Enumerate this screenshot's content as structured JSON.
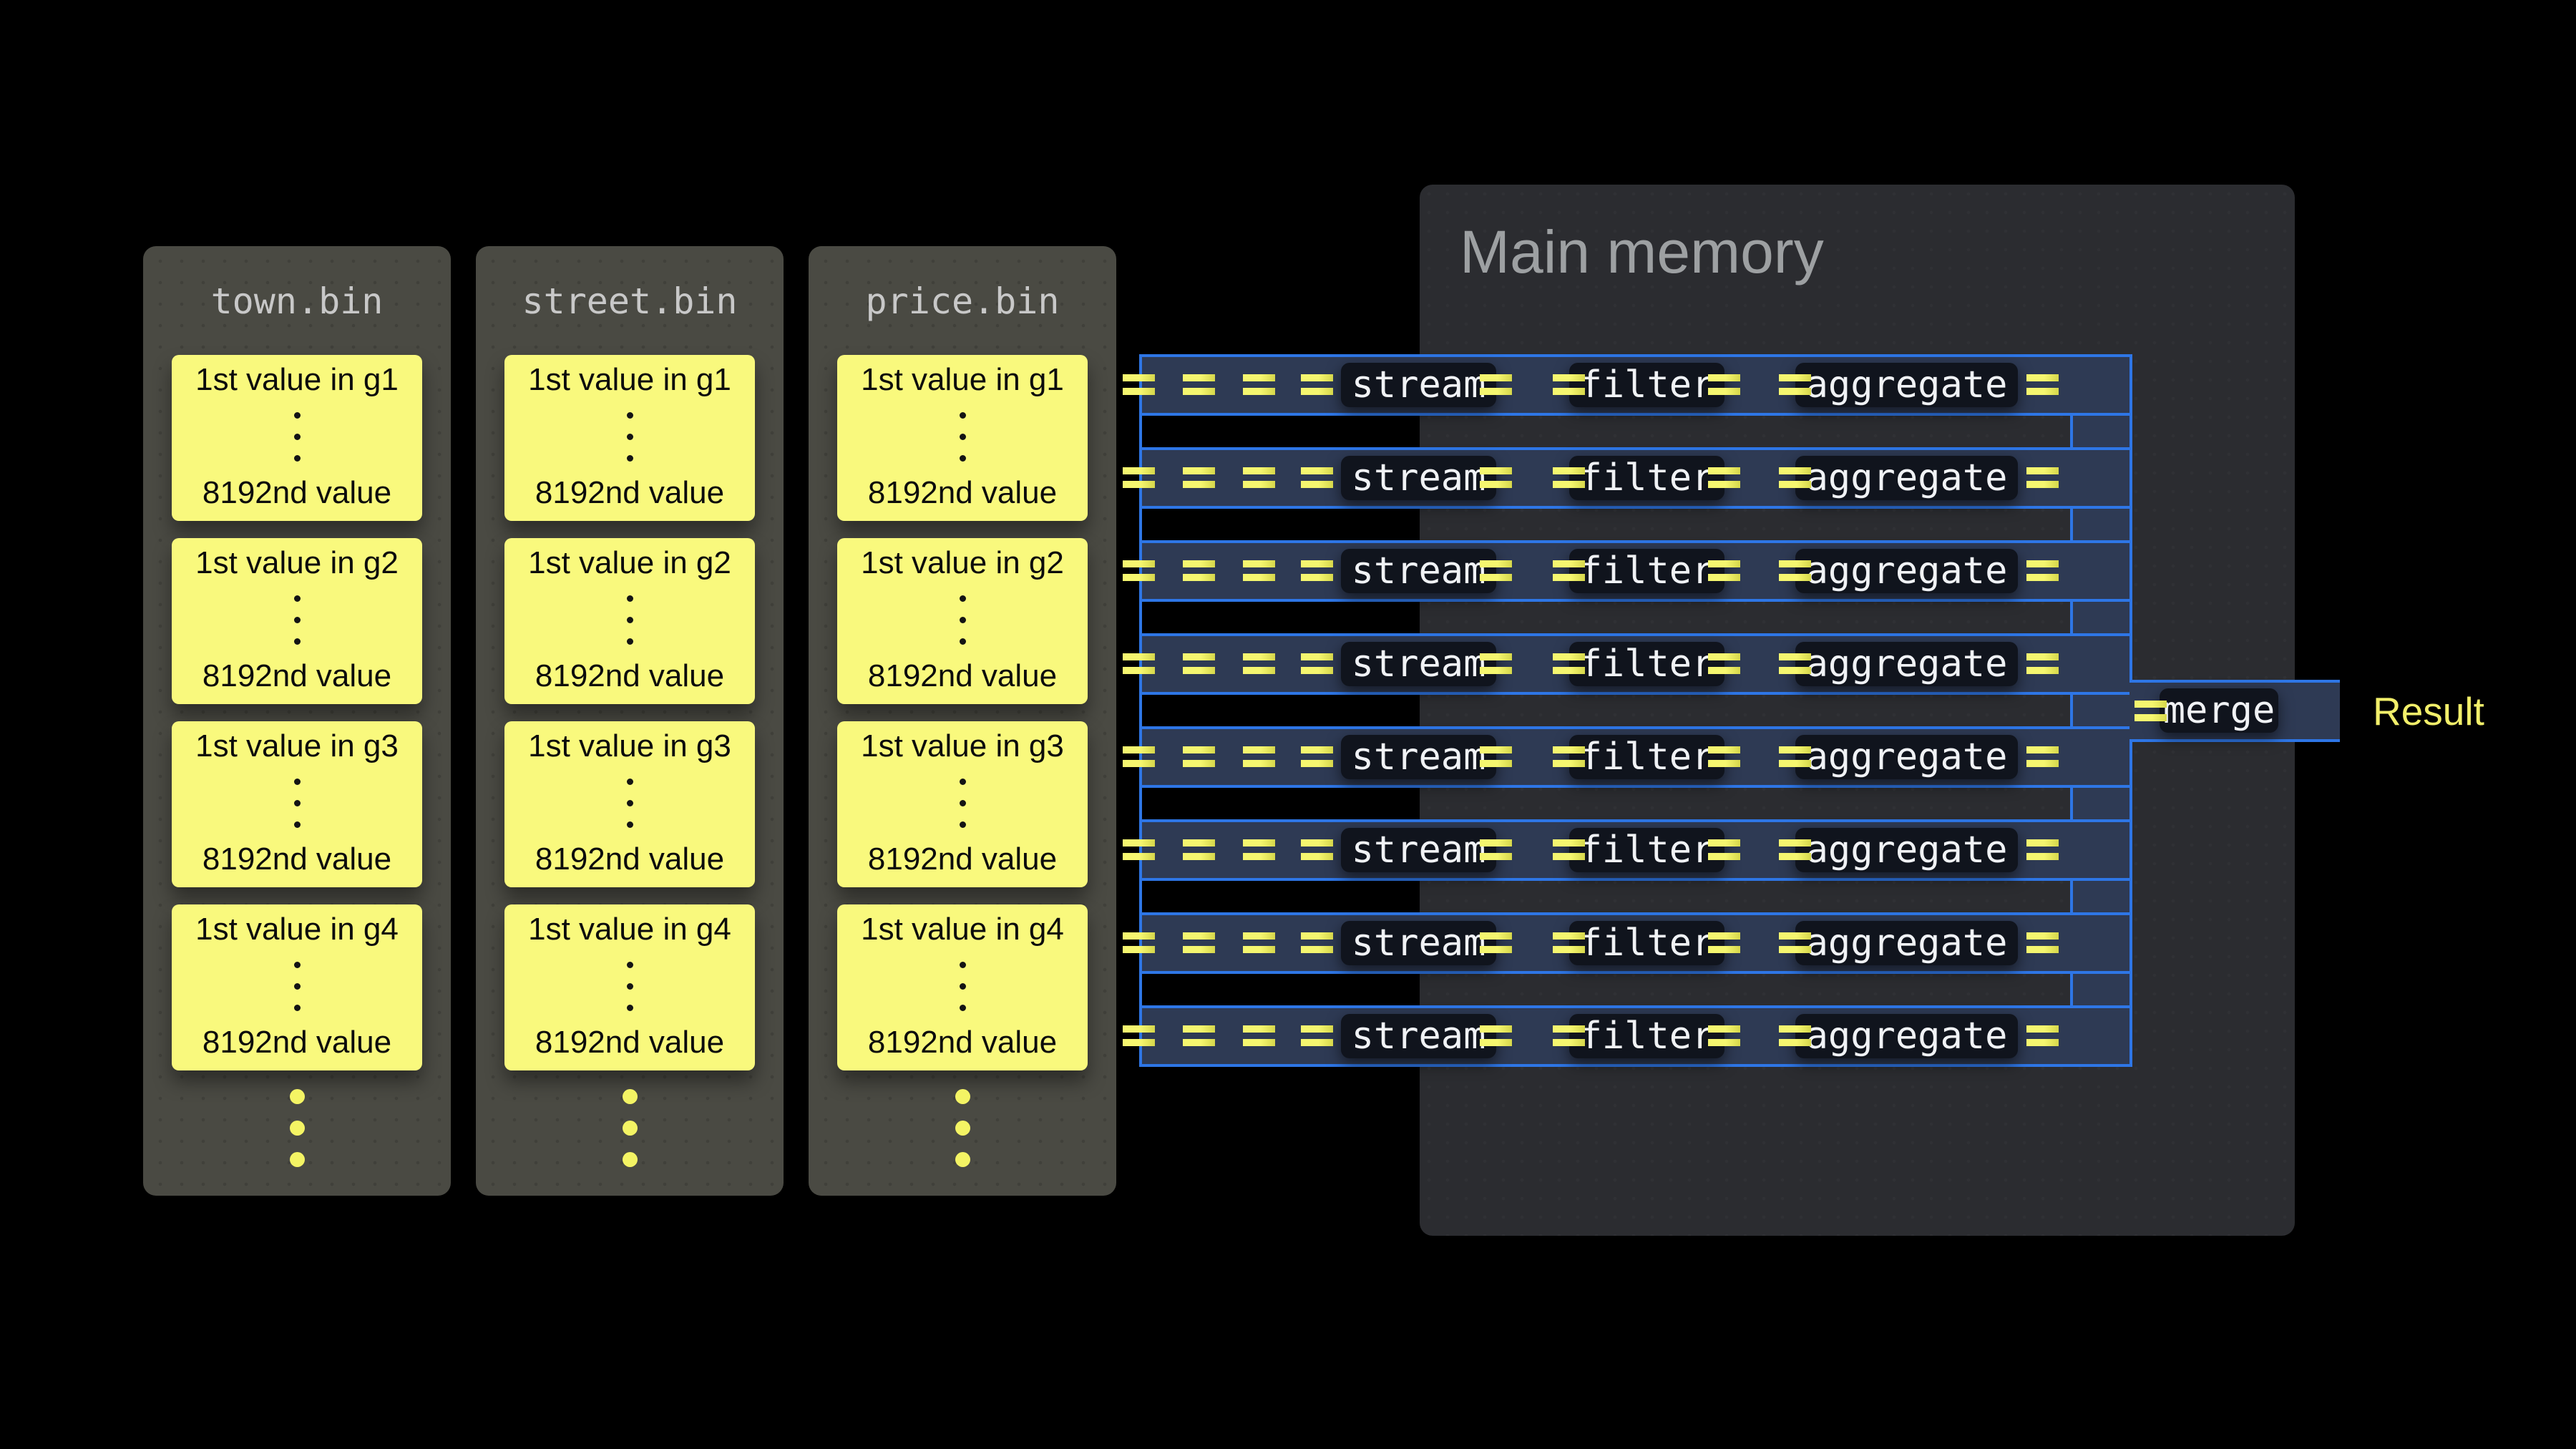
{
  "memory": {
    "title": "Main memory"
  },
  "files": {
    "panels": [
      {
        "name": "town.bin",
        "groups": [
          {
            "first": "1st value in g1",
            "last": "8192nd value"
          },
          {
            "first": "1st value in g2",
            "last": "8192nd value"
          },
          {
            "first": "1st value in g3",
            "last": "8192nd value"
          },
          {
            "first": "1st value in g4",
            "last": "8192nd value"
          }
        ]
      },
      {
        "name": "street.bin",
        "groups": [
          {
            "first": "1st value in g1",
            "last": "8192nd value"
          },
          {
            "first": "1st value in g2",
            "last": "8192nd value"
          },
          {
            "first": "1st value in g3",
            "last": "8192nd value"
          },
          {
            "first": "1st value in g4",
            "last": "8192nd value"
          }
        ]
      },
      {
        "name": "price.bin",
        "groups": [
          {
            "first": "1st value in g1",
            "last": "8192nd value"
          },
          {
            "first": "1st value in g2",
            "last": "8192nd value"
          },
          {
            "first": "1st value in g3",
            "last": "8192nd value"
          },
          {
            "first": "1st value in g4",
            "last": "8192nd value"
          }
        ]
      }
    ]
  },
  "pipeline": {
    "row_count": 8,
    "stages": [
      "stream",
      "filter",
      "aggregate"
    ],
    "merge_label": "merge",
    "result_label": "Result"
  },
  "colors": {
    "background": "#000000",
    "file_panel": "#4a4a43",
    "file_header_text": "#c8c8c8",
    "block_fill": "#f9f97d",
    "block_text": "#0c0c0c",
    "block_dot": "#141414",
    "memory_panel": "#2b2c30",
    "memory_title_text": "#9da0a2",
    "band_fill": "#2e3a54",
    "band_border": "#2e76e6",
    "dash_yellow": "#f5f66f",
    "dash_yellow_dark": "#d6d74b",
    "chip_fill": "#10141d",
    "chip_text": "#f0f2f5",
    "result_text": "#f2ef6a",
    "dot_yellow": "#f4f464"
  }
}
